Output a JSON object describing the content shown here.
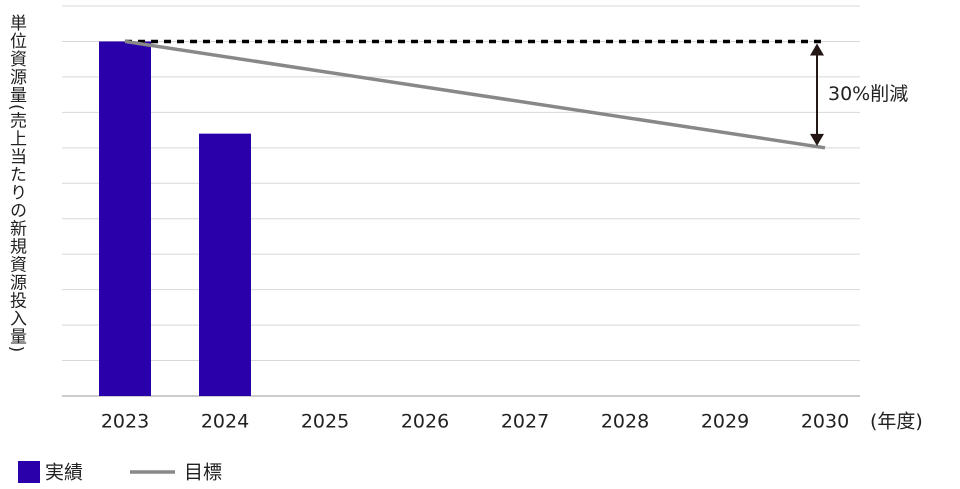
{
  "chart_data": {
    "type": "bar",
    "y_label": "単位資源量(売上当たりの新規資源投入量)",
    "x_unit": "(年度)",
    "categories": [
      "2023",
      "2024",
      "2025",
      "2026",
      "2027",
      "2028",
      "2029",
      "2030"
    ],
    "series": [
      {
        "name": "実績",
        "type": "bar",
        "color": "#2a00aa",
        "values": [
          10,
          7.4,
          null,
          null,
          null,
          null,
          null,
          null
        ]
      },
      {
        "name": "目標",
        "type": "line",
        "color": "#888888",
        "x": [
          "2023",
          "2030"
        ],
        "values": [
          10,
          7
        ]
      }
    ],
    "reference_line": {
      "value": 10,
      "color": "#000000"
    },
    "annotation": {
      "text": "30%削減",
      "from": 10,
      "to": 7
    },
    "ylim": [
      0,
      11
    ],
    "yticks": [
      0,
      1,
      2,
      3,
      4,
      5,
      6,
      7,
      8,
      9,
      10,
      11
    ],
    "grid": true,
    "legend": "bottom-left"
  }
}
